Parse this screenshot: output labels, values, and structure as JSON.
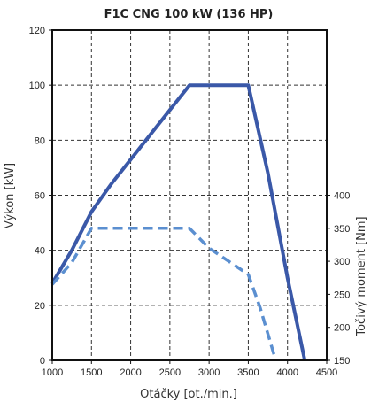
{
  "chart_data": {
    "type": "line",
    "title": "F1C CNG 100 kW (136 HP)",
    "xlabel": "Otáčky [ot./min.]",
    "ylabel": "Výkon [kW]",
    "y2label": "Točivý moment [Nm]",
    "xlim": [
      1000,
      4500
    ],
    "ylim": [
      0,
      120
    ],
    "y2lim": [
      150,
      400
    ],
    "x_ticks": [
      1000,
      1500,
      2000,
      2500,
      3000,
      3500,
      4000,
      4500
    ],
    "y_ticks": [
      0,
      20,
      40,
      60,
      80,
      100,
      120
    ],
    "y2_ticks": [
      150,
      200,
      250,
      300,
      350,
      400
    ],
    "grid": true,
    "series": [
      {
        "axis": "left",
        "style": "solid",
        "color": "#3a58a8",
        "x": [
          1000,
          1250,
          1500,
          1750,
          2000,
          2250,
          2500,
          2750,
          3000,
          3250,
          3500,
          3750,
          4000,
          4220
        ],
        "y": [
          28,
          40,
          54,
          64,
          73,
          82,
          91,
          100,
          100,
          100,
          100,
          68,
          30,
          0
        ]
      },
      {
        "axis": "right",
        "style": "dashed",
        "color": "#5b8fd0",
        "x": [
          1000,
          1250,
          1500,
          1750,
          2000,
          2500,
          2750,
          3000,
          3250,
          3500,
          3650,
          3850
        ],
        "y": [
          265,
          298,
          350,
          350,
          350,
          350,
          350,
          320,
          300,
          280,
          230,
          150
        ]
      }
    ]
  }
}
